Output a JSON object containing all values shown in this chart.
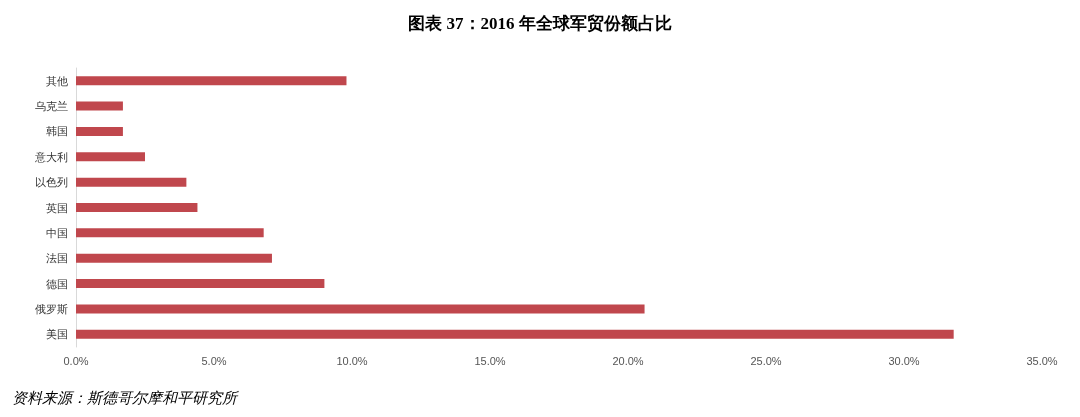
{
  "chart_data": {
    "type": "bar",
    "orientation": "horizontal",
    "title": "图表 37：2016 年全球军贸份额占比",
    "categories": [
      "其他",
      "乌克兰",
      "韩国",
      "意大利",
      "以色列",
      "英国",
      "中国",
      "法国",
      "德国",
      "俄罗斯",
      "美国"
    ],
    "values": [
      9.8,
      1.7,
      1.7,
      2.5,
      4.0,
      4.4,
      6.8,
      7.1,
      9.0,
      20.6,
      31.8
    ],
    "color": "#c0474d",
    "xlim": [
      0,
      35
    ],
    "xticks": [
      {
        "value": 0,
        "label": "0.0%"
      },
      {
        "value": 5,
        "label": "5.0%"
      },
      {
        "value": 10,
        "label": "10.0%"
      },
      {
        "value": 15,
        "label": "15.0%"
      },
      {
        "value": 20,
        "label": "20.0%"
      },
      {
        "value": 25,
        "label": "25.0%"
      },
      {
        "value": 30,
        "label": "30.0%"
      },
      {
        "value": 35,
        "label": "35.0%"
      }
    ],
    "grid": false,
    "annotations": [
      "资料来源：斯德哥尔摩和平研究所"
    ]
  }
}
